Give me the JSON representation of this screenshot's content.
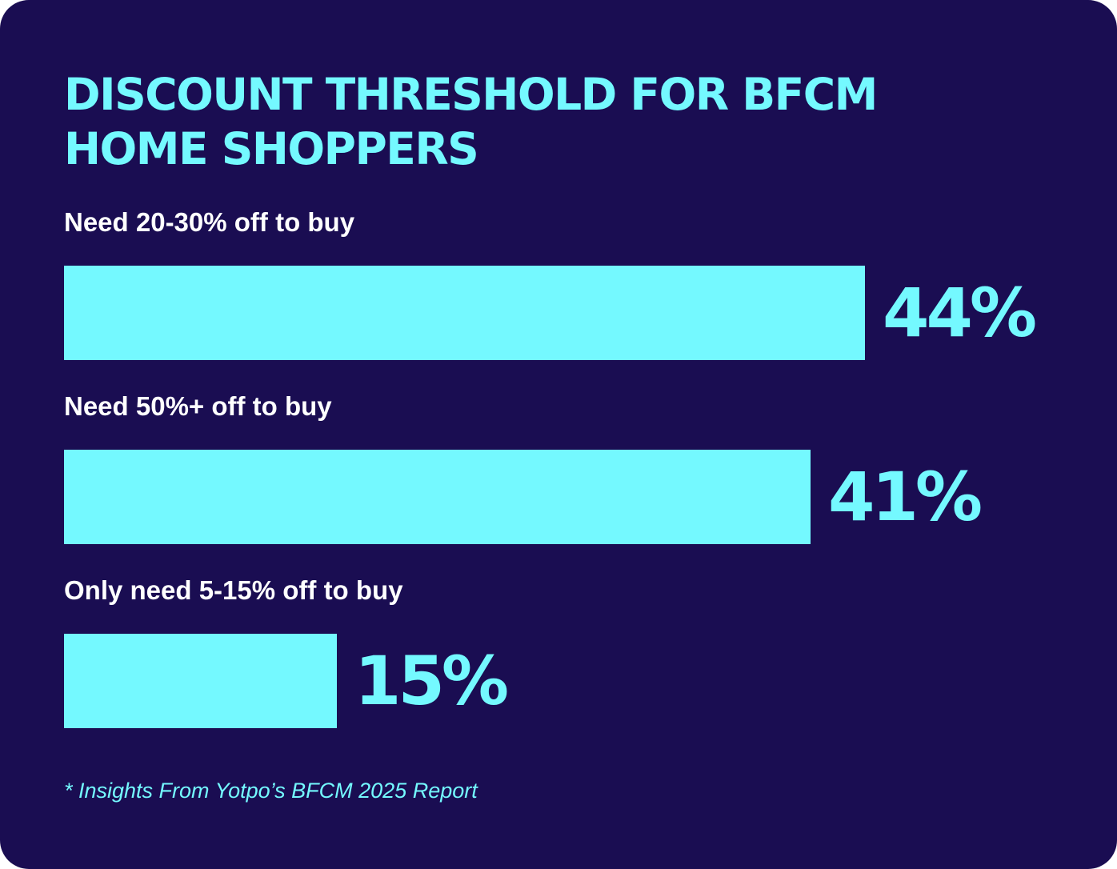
{
  "colors": {
    "background": "#1a0d52",
    "accent": "#74f9ff",
    "label": "#ffffff"
  },
  "chart_data": {
    "type": "bar",
    "orientation": "horizontal",
    "title": "DISCOUNT THRESHOLD FOR  BFCM\nHOME SHOPPERS",
    "categories": [
      "Need 20-30% off to buy",
      "Need 50%+ off to buy",
      "Only need 5-15% off to buy"
    ],
    "values": [
      44,
      41,
      15
    ],
    "value_labels": [
      "44%",
      "41%",
      "15%"
    ],
    "unit": "%",
    "xlim": [
      0,
      44
    ],
    "grid": false,
    "legend": false
  },
  "footnote": "* Insights From Yotpo’s BFCM 2025 Report"
}
